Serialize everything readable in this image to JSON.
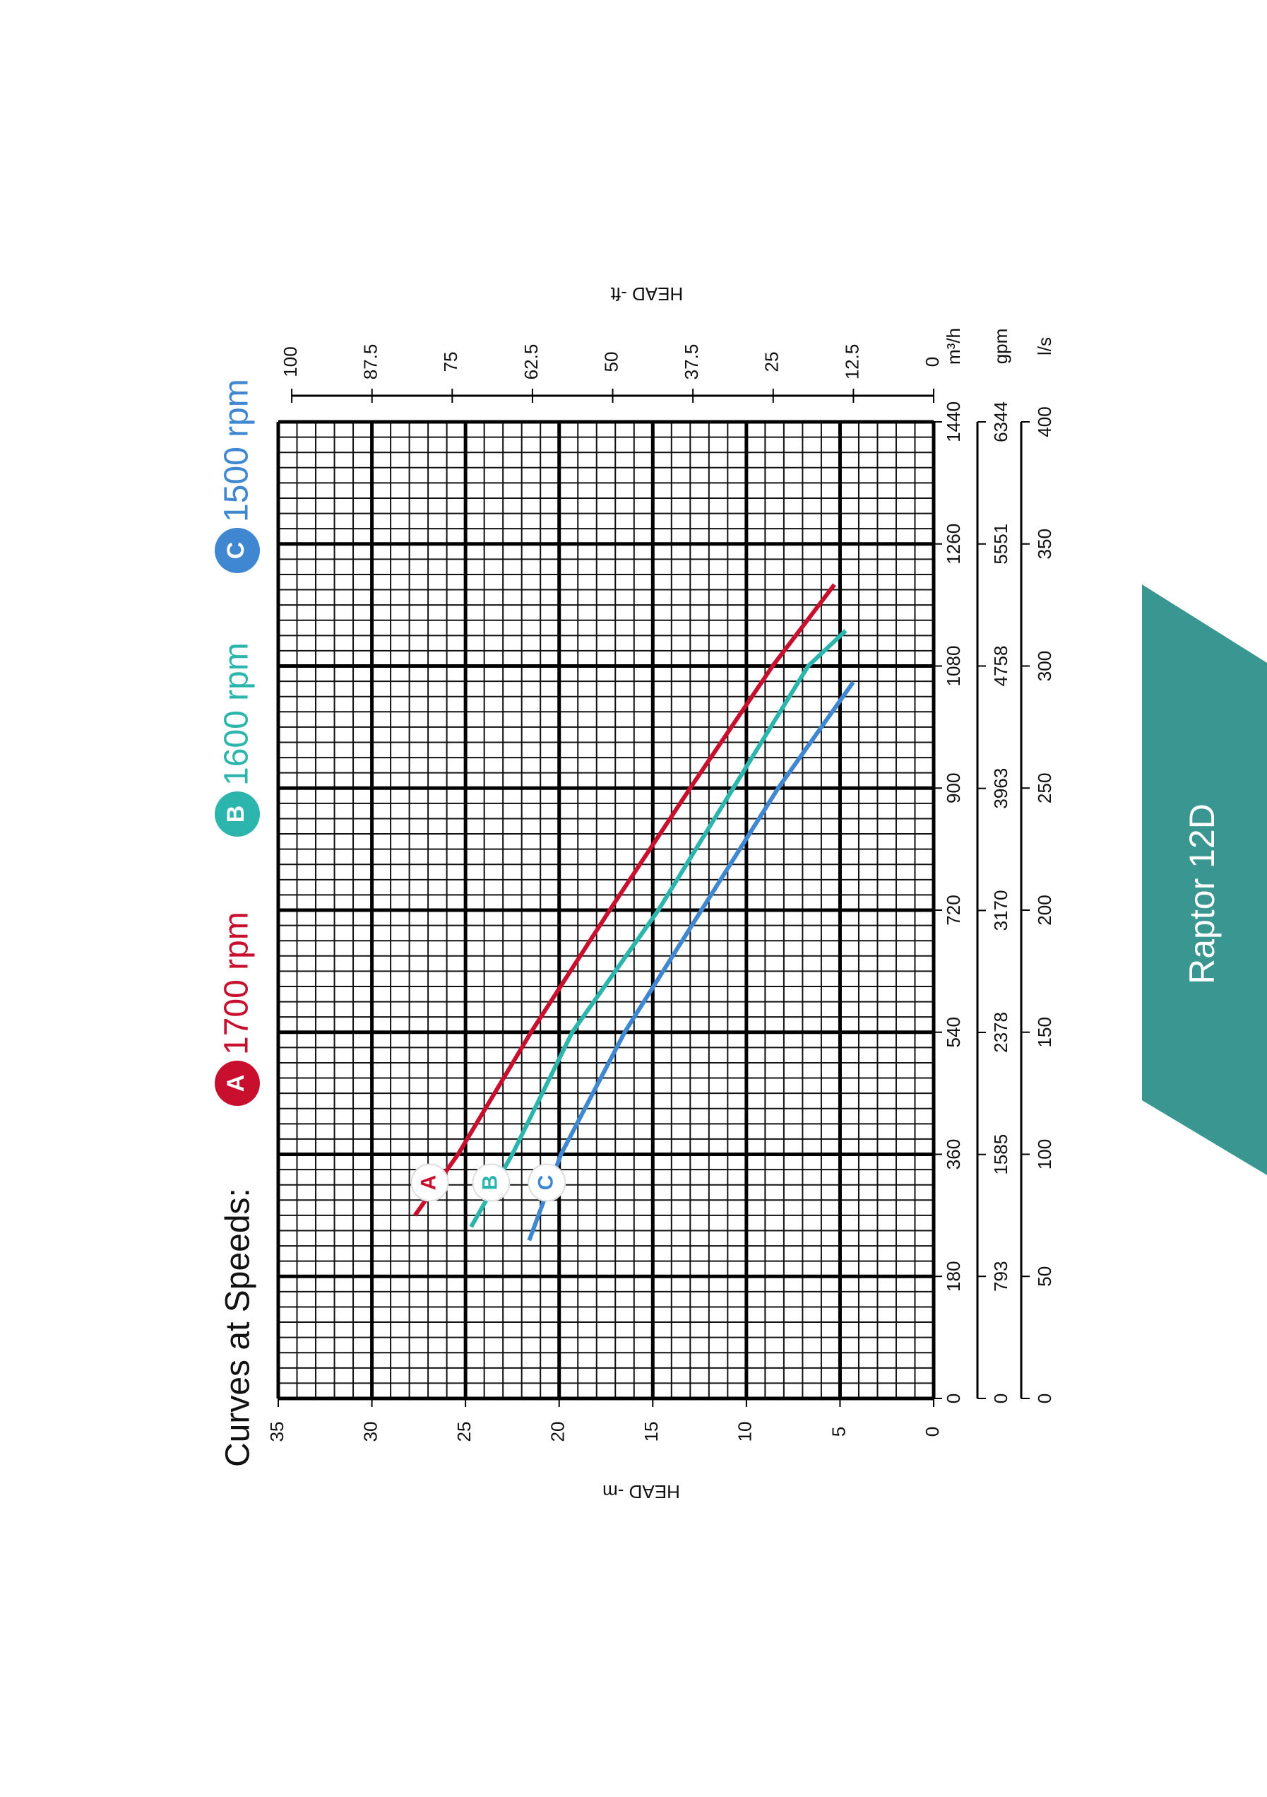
{
  "chart_data": {
    "type": "line",
    "title": "Curves at Speeds:",
    "y_label": "HEAD -m",
    "y2_label": "HEAD -ft",
    "x_unit": "m³/h",
    "xlim": [
      0,
      1440
    ],
    "xticks": [
      0,
      180,
      360,
      540,
      720,
      900,
      1080,
      1260,
      1440
    ],
    "ylim": [
      0,
      35
    ],
    "yticks": [
      0,
      5,
      10,
      15,
      20,
      25,
      30,
      35
    ],
    "y2lim": [
      0,
      102.1
    ],
    "y2ticks": [
      0,
      12.5,
      25,
      37.5,
      50,
      62.5,
      75,
      87.5,
      100
    ],
    "x_minor_step": 22.5,
    "y_minor_step": 1,
    "grid": true,
    "extra_x_axes": [
      {
        "unit": "gpm",
        "lim": [
          0,
          6344
        ],
        "ticks": [
          0,
          793,
          1585,
          2378,
          3170,
          3963,
          4758,
          5551,
          6344
        ]
      },
      {
        "unit": "l/s",
        "lim": [
          0,
          400
        ],
        "ticks": [
          0,
          50,
          100,
          150,
          200,
          250,
          300,
          350,
          400
        ]
      }
    ],
    "series": [
      {
        "name": "1700 rpm",
        "marker": "A",
        "color": "#c8102e",
        "x": [
          270,
          360,
          540,
          720,
          900,
          1080,
          1200
        ],
        "values": [
          27.7,
          25.4,
          21.5,
          17.3,
          13.0,
          8.6,
          5.3
        ]
      },
      {
        "name": "1600 rpm",
        "marker": "B",
        "color": "#2bb5ad",
        "x": [
          253,
          360,
          540,
          720,
          900,
          1080,
          1132
        ],
        "values": [
          24.7,
          22.5,
          19.3,
          14.7,
          10.7,
          6.7,
          4.7
        ]
      },
      {
        "name": "1500 rpm",
        "marker": "C",
        "color": "#3f87d0",
        "x": [
          233,
          360,
          540,
          720,
          900,
          1056
        ],
        "values": [
          21.6,
          19.9,
          16.5,
          12.4,
          8.3,
          4.3
        ]
      }
    ]
  },
  "tab": {
    "label": "Raptor 12D"
  }
}
